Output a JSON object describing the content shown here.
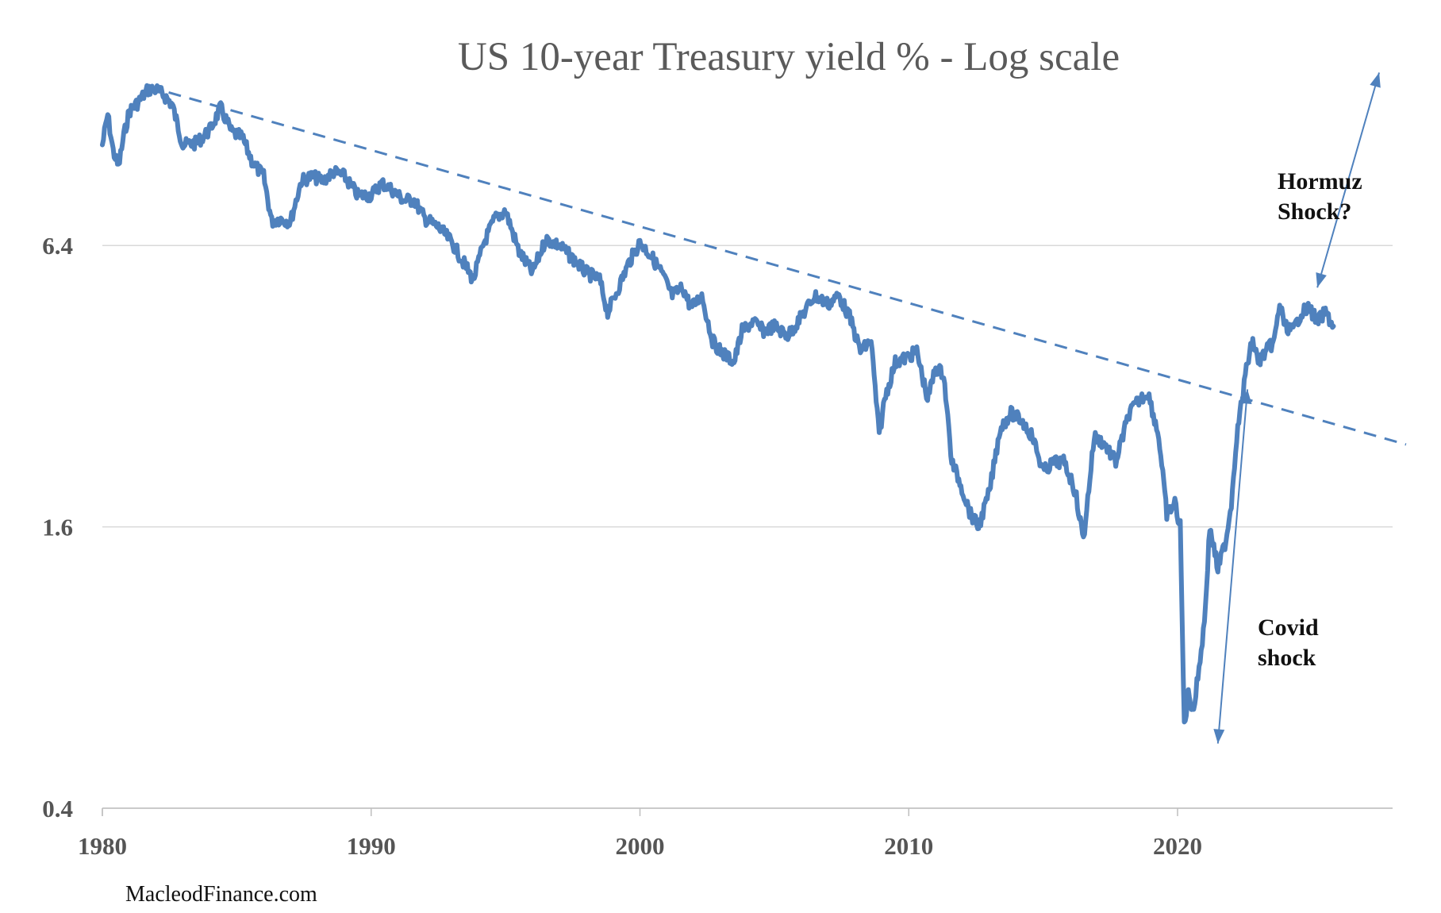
{
  "chart_data": {
    "type": "line",
    "title": "US 10-year Treasury yield % - Log scale",
    "xlabel": "",
    "ylabel": "",
    "yscale": "log",
    "xlim": [
      1980,
      2028
    ],
    "ylim": [
      0.4,
      12.8
    ],
    "y_ticks": [
      {
        "value": 0.4,
        "label": "0.4"
      },
      {
        "value": 1.6,
        "label": "1.6"
      },
      {
        "value": 6.4,
        "label": "6.4"
      }
    ],
    "x_ticks": [
      {
        "value": 1980,
        "label": "1980"
      },
      {
        "value": 1990,
        "label": "1990"
      },
      {
        "value": 2000,
        "label": "2000"
      },
      {
        "value": 2010,
        "label": "2010"
      },
      {
        "value": 2020,
        "label": "2020"
      }
    ],
    "grid": "horizontal",
    "legend": "none",
    "colors": {
      "series": "#4f81bd",
      "grid": "#d9d9d9",
      "axis": "#bfbfbf",
      "annotation": "#4f81bd"
    },
    "series": [
      {
        "x": [
          1980.0,
          1980.2,
          1980.4,
          1980.6,
          1980.8,
          1981.0,
          1981.3,
          1981.7,
          1982.0,
          1982.3,
          1982.6,
          1982.9,
          1983.0,
          1983.5,
          1984.0,
          1984.4,
          1984.8,
          1985.2,
          1985.6,
          1986.0,
          1986.3,
          1986.6,
          1987.0,
          1987.4,
          1987.8,
          1988.2,
          1988.6,
          1989.0,
          1989.5,
          1990.0,
          1990.4,
          1990.8,
          1991.2,
          1991.6,
          1992.0,
          1992.5,
          1993.0,
          1993.5,
          1993.8,
          1994.2,
          1994.6,
          1995.0,
          1995.5,
          1996.0,
          1996.5,
          1997.0,
          1997.5,
          1998.0,
          1998.5,
          1998.8,
          1999.2,
          1999.6,
          2000.0,
          2000.4,
          2000.8,
          2001.2,
          2001.6,
          2001.9,
          2002.3,
          2002.7,
          2003.0,
          2003.5,
          2003.8,
          2004.2,
          2004.6,
          2005.0,
          2005.5,
          2006.0,
          2006.5,
          2007.0,
          2007.4,
          2007.8,
          2008.2,
          2008.6,
          2008.9,
          2009.1,
          2009.5,
          2010.0,
          2010.3,
          2010.7,
          2011.0,
          2011.3,
          2011.6,
          2011.9,
          2012.3,
          2012.6,
          2013.0,
          2013.4,
          2013.8,
          2014.2,
          2014.6,
          2015.0,
          2015.4,
          2015.8,
          2016.2,
          2016.5,
          2016.9,
          2017.3,
          2017.7,
          2018.2,
          2018.6,
          2018.9,
          2019.3,
          2019.6,
          2019.9,
          2020.1,
          2020.25,
          2020.4,
          2020.6,
          2020.8,
          2021.0,
          2021.2,
          2021.5,
          2021.8,
          2022.0,
          2022.2,
          2022.4,
          2022.6,
          2022.8,
          2023.0,
          2023.3,
          2023.6,
          2023.8,
          2024.0,
          2024.3,
          2024.6,
          2024.9,
          2025.2,
          2025.5,
          2025.8
        ],
        "y": [
          10.5,
          12.2,
          10.2,
          9.4,
          11.0,
          12.4,
          12.9,
          13.8,
          13.8,
          13.4,
          12.8,
          11.0,
          10.5,
          10.6,
          11.3,
          12.6,
          11.2,
          10.9,
          9.6,
          9.0,
          7.2,
          7.3,
          7.2,
          8.8,
          9.0,
          8.8,
          9.2,
          9.0,
          8.2,
          8.2,
          8.7,
          8.4,
          8.0,
          8.0,
          7.3,
          7.0,
          6.5,
          5.8,
          5.4,
          6.5,
          7.3,
          7.6,
          6.2,
          5.6,
          6.6,
          6.4,
          6.0,
          5.6,
          5.4,
          4.6,
          5.2,
          5.9,
          6.5,
          6.1,
          5.6,
          5.0,
          5.2,
          4.7,
          5.0,
          4.0,
          3.8,
          3.6,
          4.2,
          4.4,
          4.2,
          4.3,
          4.1,
          4.5,
          5.0,
          4.8,
          5.0,
          4.5,
          3.8,
          4.0,
          2.5,
          3.0,
          3.6,
          3.7,
          3.8,
          3.0,
          3.5,
          3.4,
          2.2,
          2.0,
          1.7,
          1.6,
          1.9,
          2.6,
          2.8,
          2.7,
          2.5,
          2.1,
          2.2,
          2.2,
          1.9,
          1.5,
          2.5,
          2.4,
          2.2,
          2.8,
          3.0,
          3.1,
          2.5,
          1.7,
          1.8,
          1.6,
          0.6,
          0.7,
          0.65,
          0.8,
          1.0,
          1.6,
          1.3,
          1.5,
          1.8,
          2.5,
          3.0,
          3.6,
          4.0,
          3.6,
          3.8,
          4.0,
          4.8,
          4.3,
          4.2,
          4.6,
          4.7,
          4.4,
          4.6,
          4.3
        ]
      }
    ],
    "annotations": [
      {
        "text_lines": [
          "Hormuz",
          "Shock?"
        ]
      },
      {
        "text_lines": [
          "Covid",
          "shock"
        ]
      }
    ],
    "trendline": {
      "style": "dashed",
      "from": {
        "x": 1981.7,
        "y": 14.0
      },
      "to": {
        "x": 2028.5,
        "y": 2.4
      }
    },
    "arrows": [
      {
        "from": {
          "x": 2027.5,
          "y": 15.0
        },
        "to": {
          "x": 2025.2,
          "y": 5.2
        }
      },
      {
        "from": {
          "x": 2022.6,
          "y": 3.15
        },
        "to": {
          "x": 2021.5,
          "y": 0.55
        }
      }
    ],
    "source": "MacleodFinance.com"
  }
}
